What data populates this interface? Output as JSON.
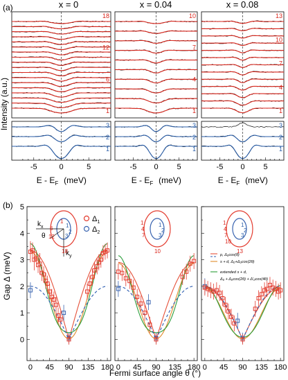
{
  "figure": {
    "panel_a_label": "(a)",
    "panel_b_label": "(b)"
  },
  "colors": {
    "fit_red": "#d9261c",
    "spectrum_black": "#111111",
    "fit_blue": "#2a5ea8",
    "index_red": "#d9261c",
    "index_blue": "#2a5ea8",
    "delta1": "#e33b2e",
    "delta2": "#3a64b0",
    "curve_dwave": "#e55039",
    "curve_sd": "#2b5bb1",
    "curve_ext": "#2a9d3a",
    "curve_ext2": "#e08a2a"
  },
  "panel_a": {
    "ylabel": "Intensity (a.u.)",
    "xlabel": "E - E",
    "xlabel_sub": "F",
    "xlabel_unit": " (meV)",
    "xticks": [
      "-5",
      "0",
      "5"
    ],
    "columns": [
      {
        "title": "x = 0",
        "top_indices": [
          "18",
          "12",
          "6",
          "1"
        ],
        "bottom_indices": [
          "3",
          "2",
          "1"
        ]
      },
      {
        "title": "x = 0.04",
        "top_indices": [
          "10",
          "7",
          "4",
          "1"
        ],
        "bottom_indices": [
          "3",
          "2",
          "1"
        ]
      },
      {
        "title": "x = 0.08",
        "top_indices": [
          "13",
          "10",
          "7",
          "4",
          "1"
        ],
        "bottom_indices": [
          "3",
          "2",
          "1"
        ]
      }
    ]
  },
  "panel_b": {
    "ylabel": "Gap Δ (meV)",
    "xlabel": "Fermi surface angle θ (°)",
    "yticks": [
      "0",
      "1",
      "2",
      "3",
      "4",
      "5"
    ],
    "xticks": [
      "0",
      "45",
      "90",
      "135",
      "180"
    ],
    "legend_top": {
      "d1": "Δ",
      "d1_sub": "1",
      "d2": "Δ",
      "d2_sub": "2"
    },
    "legend_models": [
      {
        "label": "p, Δ₀cos(θ)"
      },
      {
        "label": "s + d, Δ₀+Δ₀cos(2θ)"
      },
      {
        "label": "extended s + d,"
      },
      {
        "label": "Δ₀ + Δ₀cos(2θ) + Δ′₀cos(4θ)"
      }
    ],
    "inset1": {
      "kx": "k",
      "kx_sub": "x",
      "ky": "k",
      "ky_sub": "y",
      "theta": "θ",
      "labels": [
        "1",
        "6",
        "12",
        "3",
        "2",
        "1",
        "18"
      ]
    },
    "inset2": {
      "labels": [
        "1",
        "4",
        "7",
        "3",
        "2",
        "1",
        "10"
      ]
    },
    "inset3": {
      "labels": [
        "1",
        "4",
        "7",
        "10",
        "3",
        "2",
        "1",
        "13"
      ]
    }
  },
  "chart_data": [
    {
      "type": "line",
      "panel": "a",
      "x_range_meV": [
        -9,
        9
      ],
      "columns": [
        {
          "title": "x = 0",
          "top_curves": 18,
          "bottom_curves": 3
        },
        {
          "title": "x = 0.04",
          "top_curves": 10,
          "bottom_curves": 3
        },
        {
          "title": "x = 0.08",
          "top_curves": 13,
          "bottom_curves": 3
        }
      ]
    },
    {
      "type": "scatter",
      "panel": "b",
      "ylim": [
        -0.8,
        5
      ],
      "xlim": [
        -8,
        188
      ],
      "subplots": [
        {
          "name": "x = 0",
          "delta1": [
            [
              0,
              3.3,
              0.4
            ],
            [
              5,
              3.35,
              0.3
            ],
            [
              9,
              3.0,
              0.4
            ],
            [
              14,
              3.05,
              0.3
            ],
            [
              18,
              2.8,
              0.3
            ],
            [
              22,
              2.85,
              0.4
            ],
            [
              27,
              2.5,
              0.3
            ],
            [
              31,
              2.45,
              0.3
            ],
            [
              36,
              2.2,
              0.3
            ],
            [
              40,
              2.1,
              0.3
            ],
            [
              45,
              1.8,
              0.3
            ],
            [
              50,
              1.6,
              0.3
            ],
            [
              55,
              1.5,
              0.3
            ],
            [
              60,
              1.3,
              0.3
            ],
            [
              65,
              0.9,
              0.3
            ],
            [
              70,
              0.75,
              0.3
            ],
            [
              90,
              0.0,
              0.2
            ],
            [
              133,
              1.8,
              0.3
            ],
            [
              139,
              2.1,
              0.3
            ],
            [
              145,
              2.35,
              0.3
            ],
            [
              150,
              2.6,
              0.3
            ],
            [
              156,
              2.75,
              0.3
            ],
            [
              160,
              2.9,
              0.3
            ],
            [
              165,
              3.0,
              0.3
            ],
            [
              170,
              3.25,
              0.3
            ],
            [
              175,
              3.3,
              0.3
            ],
            [
              180,
              3.35,
              0.3
            ]
          ],
          "delta2": [
            [
              0,
              1.85,
              0.3
            ],
            [
              78,
              1.0,
              0.3
            ],
            [
              90,
              0.05,
              0.2
            ]
          ]
        },
        {
          "name": "x = 0.04",
          "delta1": [
            [
              0,
              2.55,
              0.3
            ],
            [
              9,
              2.5,
              0.3
            ],
            [
              18,
              2.3,
              0.3
            ],
            [
              27,
              2.2,
              0.3
            ],
            [
              36,
              1.95,
              0.3
            ],
            [
              45,
              1.6,
              0.3
            ],
            [
              54,
              1.35,
              0.3
            ],
            [
              63,
              1.0,
              0.3
            ],
            [
              75,
              0.55,
              0.3
            ],
            [
              90,
              0.0,
              0.2
            ],
            [
              153,
              2.35,
              0.3
            ],
            [
              162,
              2.55,
              0.3
            ],
            [
              171,
              2.85,
              0.3
            ],
            [
              180,
              2.95,
              0.3
            ]
          ],
          "delta2": [
            [
              0,
              1.9,
              0.3
            ],
            [
              72,
              1.4,
              0.3
            ],
            [
              90,
              0.05,
              0.2
            ]
          ]
        },
        {
          "name": "x = 0.08",
          "delta1": [
            [
              0,
              1.95,
              0.3
            ],
            [
              7,
              1.9,
              0.3
            ],
            [
              14,
              1.85,
              0.3
            ],
            [
              21,
              1.8,
              0.3
            ],
            [
              28,
              1.85,
              0.3
            ],
            [
              35,
              1.75,
              0.3
            ],
            [
              42,
              1.55,
              0.3
            ],
            [
              49,
              1.3,
              0.3
            ],
            [
              56,
              1.05,
              0.3
            ],
            [
              63,
              0.85,
              0.3
            ],
            [
              70,
              0.6,
              0.3
            ],
            [
              90,
              0.0,
              0.2
            ],
            [
              120,
              1.15,
              0.3
            ],
            [
              128,
              1.55,
              0.3
            ],
            [
              135,
              1.7,
              0.3
            ],
            [
              142,
              1.85,
              0.3
            ],
            [
              148,
              1.9,
              0.3
            ],
            [
              155,
              2.05,
              0.3
            ],
            [
              162,
              1.95,
              0.3
            ],
            [
              169,
              1.9,
              0.3
            ],
            [
              175,
              1.8,
              0.3
            ],
            [
              180,
              1.85,
              0.3
            ]
          ],
          "delta2": [
            [
              0,
              2.0,
              0.3
            ],
            [
              78,
              0.7,
              0.3
            ],
            [
              90,
              0.05,
              0.2
            ]
          ]
        }
      ]
    }
  ]
}
